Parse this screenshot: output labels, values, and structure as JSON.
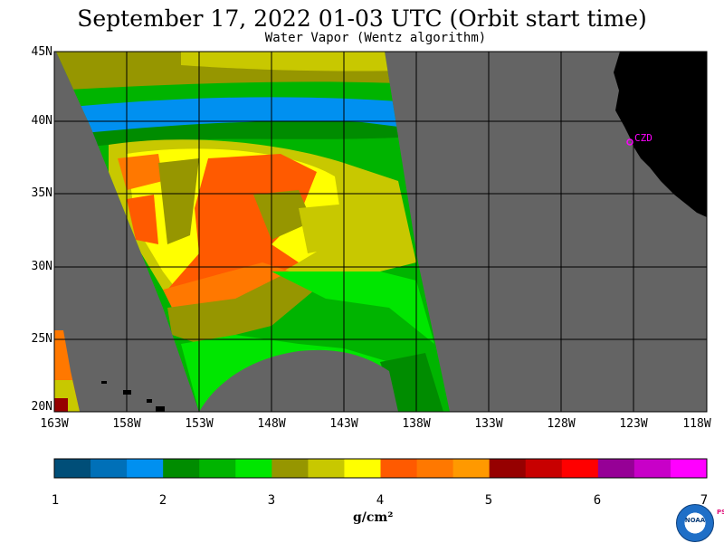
{
  "header": {
    "title": "September 17, 2022  01-03 UTC  (Orbit start time)",
    "subtitle": "Water Vapor (Wentz algorithm)"
  },
  "map": {
    "lat_labels": [
      "45N",
      "40N",
      "35N",
      "30N",
      "25N",
      "20N"
    ],
    "lon_labels": [
      "163W",
      "158W",
      "153W",
      "148W",
      "143W",
      "138W",
      "133W",
      "128W",
      "123W",
      "118W"
    ],
    "station_label": "CZD",
    "colors": {
      "land": "#000000",
      "no_data": "#646464",
      "grid": "#000000",
      "station": "#ff00ff"
    }
  },
  "colorbar": {
    "ticks": [
      "1",
      "2",
      "3",
      "4",
      "5",
      "6",
      "7"
    ],
    "units_label": "g/cm²",
    "colors": [
      "#004e78",
      "#0070b8",
      "#0090f0",
      "#008c00",
      "#00b400",
      "#00e600",
      "#969600",
      "#c8c800",
      "#ffff00",
      "#ff5a00",
      "#ff7800",
      "#ff9900",
      "#960000",
      "#c80000",
      "#ff0000",
      "#960096",
      "#c800c8",
      "#ff00ff"
    ]
  },
  "logo": {
    "text": "NOAA",
    "side_text": "PSL"
  }
}
